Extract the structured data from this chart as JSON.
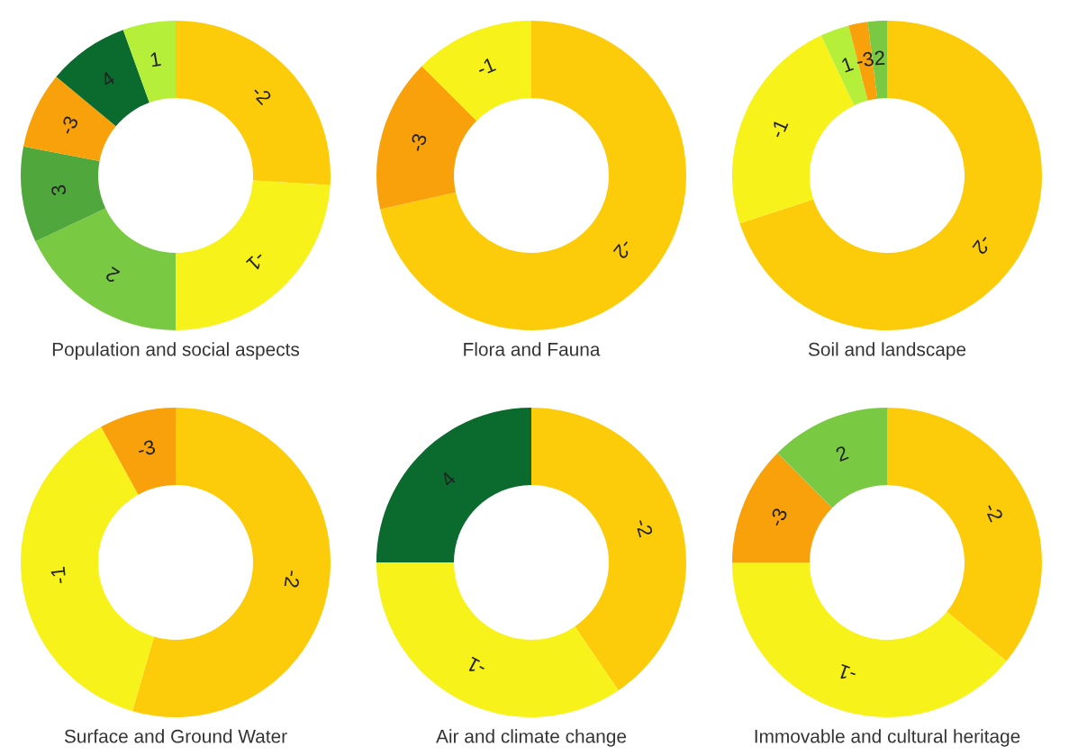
{
  "chart_data": [
    {
      "type": "donut",
      "title": "Population and social aspects",
      "categories": [
        "-2",
        "-1",
        "2",
        "3",
        "-3",
        "4",
        "1"
      ],
      "values": [
        26,
        24,
        18,
        10,
        8,
        8.5,
        5.5
      ],
      "colors": [
        "#fccc0a",
        "#f7f21a",
        "#7ac943",
        "#50a83c",
        "#f9a10a",
        "#0b6b2e",
        "#b5ef3a"
      ]
    },
    {
      "type": "donut",
      "title": "Flora and Fauna",
      "categories": [
        "-2",
        "-3",
        "-1"
      ],
      "values": [
        71.5,
        16,
        12.5
      ],
      "colors": [
        "#fccc0a",
        "#f9a10a",
        "#f7f21a"
      ]
    },
    {
      "type": "donut",
      "title": "Soil and landscape",
      "categories": [
        "-2",
        "-1",
        "1",
        "-3",
        "2"
      ],
      "values": [
        70,
        23,
        3,
        2,
        2
      ],
      "colors": [
        "#fccc0a",
        "#f7f21a",
        "#b5ef3a",
        "#f9a10a",
        "#7ac943"
      ]
    },
    {
      "type": "donut",
      "title": "Surface and Ground Water",
      "categories": [
        "-2",
        "-1",
        "-3"
      ],
      "values": [
        54.5,
        37.5,
        8
      ],
      "colors": [
        "#fccc0a",
        "#f7f21a",
        "#f9a10a"
      ]
    },
    {
      "type": "donut",
      "title": "Air and climate change",
      "categories": [
        "-2",
        "-1",
        "4"
      ],
      "values": [
        40.5,
        34.5,
        25
      ],
      "colors": [
        "#fccc0a",
        "#f7f21a",
        "#0b6b2e"
      ]
    },
    {
      "type": "donut",
      "title": "Immovable and cultural heritage",
      "categories": [
        "-2",
        "-1",
        "-3",
        "2"
      ],
      "values": [
        36,
        39,
        12.5,
        12.5
      ],
      "colors": [
        "#fccc0a",
        "#f7f21a",
        "#f9a10a",
        "#7ac943"
      ]
    }
  ]
}
